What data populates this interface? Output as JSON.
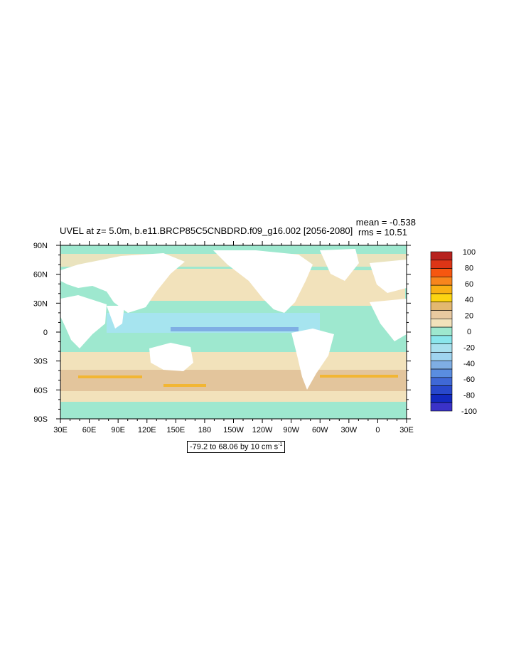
{
  "chart_data": {
    "type": "heatmap",
    "title": "UVEL at z=   5.0m, b.e11.BRCP85C5CNBDRD.f09_g16.002 [2056-2080]",
    "stats": {
      "mean": "mean = -0.538",
      "rms": "rms = 10.51"
    },
    "range_label": "-79.2 to 68.06 by 10 cm s",
    "range_unit_exp": "-1",
    "x_ticks": [
      "30E",
      "60E",
      "90E",
      "120E",
      "150E",
      "180",
      "150W",
      "120W",
      "90W",
      "60W",
      "30W",
      "0",
      "30E"
    ],
    "y_ticks": [
      "90N",
      "60N",
      "30N",
      "0",
      "30S",
      "60S",
      "90S"
    ],
    "xlim": [
      30,
      390
    ],
    "ylim": [
      -90,
      90
    ],
    "colorbar": {
      "labels": [
        "100",
        "80",
        "60",
        "40",
        "20",
        "0",
        "-20",
        "-40",
        "-60",
        "-80",
        "-100"
      ],
      "colors": [
        "#b7221e",
        "#dd3516",
        "#f65710",
        "#f7861d",
        "#f9b115",
        "#fcd412",
        "#e3b870",
        "#e8c9a0",
        "#f2e2bb",
        "#9ee8cf",
        "#8ae6ec",
        "#a8e0ee",
        "#9fd4ef",
        "#7faee4",
        "#5a8de0",
        "#3f68d6",
        "#2848cc",
        "#1229c0",
        "#3a32c8"
      ]
    },
    "colors": {
      "ocean_base": "#9ee8cf",
      "weak_positive": "#f2e2bb",
      "mid_positive": "#e3c59c",
      "strong_positive": "#f2b633",
      "weak_negative": "#a6e4ef",
      "strong_negative": "#5f8fe3",
      "land": "#ffffff"
    }
  }
}
